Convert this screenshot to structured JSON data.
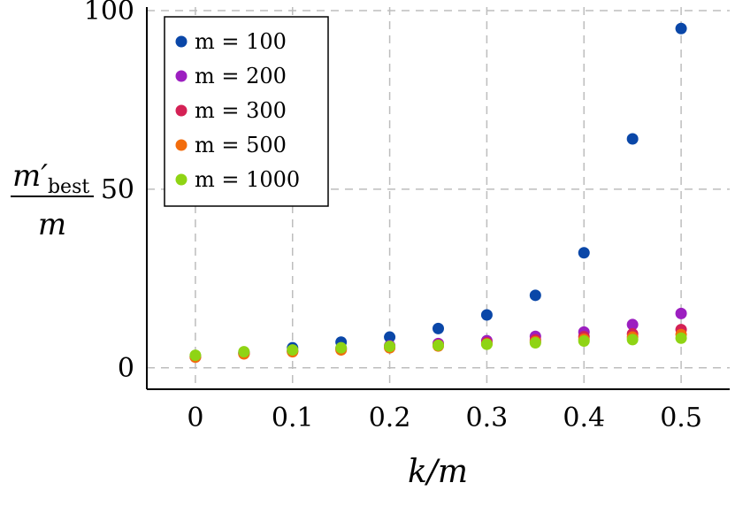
{
  "chart_data": {
    "type": "scatter",
    "xlabel": "k/m",
    "ylabel": {
      "numerator": "m′",
      "subscript": "best",
      "denominator": "m"
    },
    "xlim": [
      -0.05,
      0.55
    ],
    "ylim": [
      -6,
      101
    ],
    "xticks": [
      0,
      0.1,
      0.2,
      0.3,
      0.4,
      0.5
    ],
    "xtick_labels": [
      "0",
      "0.1",
      "0.2",
      "0.3",
      "0.4",
      "0.5"
    ],
    "yticks": [
      0,
      50,
      100
    ],
    "ytick_labels": [
      "0",
      "50",
      "100"
    ],
    "grid": true,
    "legend_position": "top-left",
    "x": [
      0,
      0.05,
      0.1,
      0.15,
      0.2,
      0.25,
      0.3,
      0.35,
      0.4,
      0.45,
      0.5
    ],
    "series": [
      {
        "name": "m = 100",
        "color": "#0a47a8",
        "values": [
          3.2,
          4.3,
          5.6,
          7.2,
          8.6,
          11.0,
          14.8,
          20.3,
          32.2,
          64.1,
          95.0
        ]
      },
      {
        "name": "m = 200",
        "color": "#9c1fc0",
        "values": [
          3.1,
          4.0,
          4.7,
          5.5,
          6.2,
          6.8,
          7.6,
          8.8,
          10.0,
          12.1,
          15.2
        ]
      },
      {
        "name": "m = 300",
        "color": "#d42155",
        "values": [
          3.0,
          4.0,
          4.6,
          5.2,
          5.8,
          6.4,
          7.0,
          7.8,
          8.7,
          9.5,
          10.7
        ]
      },
      {
        "name": "m = 500",
        "color": "#f26c0d",
        "values": [
          3.0,
          3.9,
          4.5,
          5.0,
          5.6,
          6.1,
          6.7,
          7.3,
          8.0,
          8.6,
          9.3
        ]
      },
      {
        "name": "m = 1000",
        "color": "#8fd414",
        "values": [
          3.5,
          4.5,
          5.0,
          5.6,
          6.0,
          6.3,
          6.6,
          7.0,
          7.5,
          7.9,
          8.3
        ]
      }
    ]
  }
}
